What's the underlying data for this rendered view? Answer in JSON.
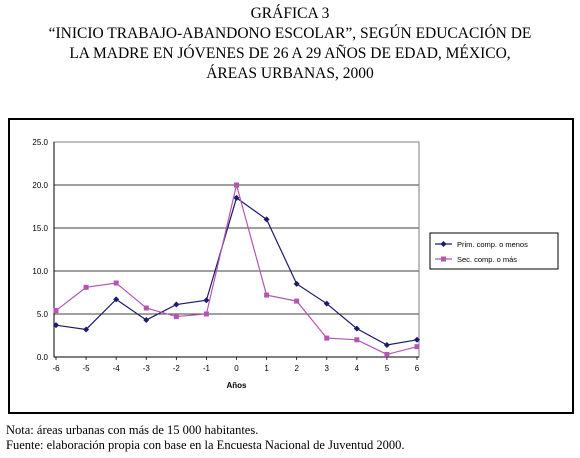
{
  "header": {
    "figure_label": "GRÁFICA 3",
    "title_line1": "“INICIO TRABAJO-ABANDONO ESCOLAR”, SEGÚN EDUCACIÓN DE",
    "title_line2": "LA MADRE EN JÓVENES DE 26 A 29 AÑOS DE EDAD, MÉXICO,",
    "title_line3": "ÁREAS URBANAS, 2000"
  },
  "footer": {
    "note": "Nota: áreas urbanas con más de 15 000 habitantes.",
    "source": "Fuente: elaboración propia con base en la Encuesta Nacional de Juventud 2000."
  },
  "chart_data": {
    "type": "line",
    "xlabel": "Años",
    "ylabel": "",
    "x": [
      -6,
      -5,
      -4,
      -3,
      -2,
      -1,
      0,
      1,
      2,
      3,
      4,
      5,
      6
    ],
    "ylim": [
      0,
      25
    ],
    "yticks": [
      "0.0",
      "5.0",
      "10.0",
      "15.0",
      "20.0",
      "25.0"
    ],
    "grid": "horizontal",
    "legend_position": "right",
    "series": [
      {
        "name": "Prim. comp. o menos",
        "color": "#1a1a6e",
        "marker": "diamond",
        "values": [
          3.7,
          3.2,
          6.7,
          4.3,
          6.1,
          6.6,
          18.5,
          16.0,
          8.5,
          6.2,
          3.3,
          1.4,
          2.0
        ]
      },
      {
        "name": "Sec. comp. o más",
        "color": "#b455b4",
        "marker": "square",
        "values": [
          5.4,
          8.1,
          8.6,
          5.7,
          4.7,
          5.0,
          20.0,
          7.2,
          6.5,
          2.2,
          2.0,
          0.3,
          1.2
        ]
      }
    ]
  }
}
